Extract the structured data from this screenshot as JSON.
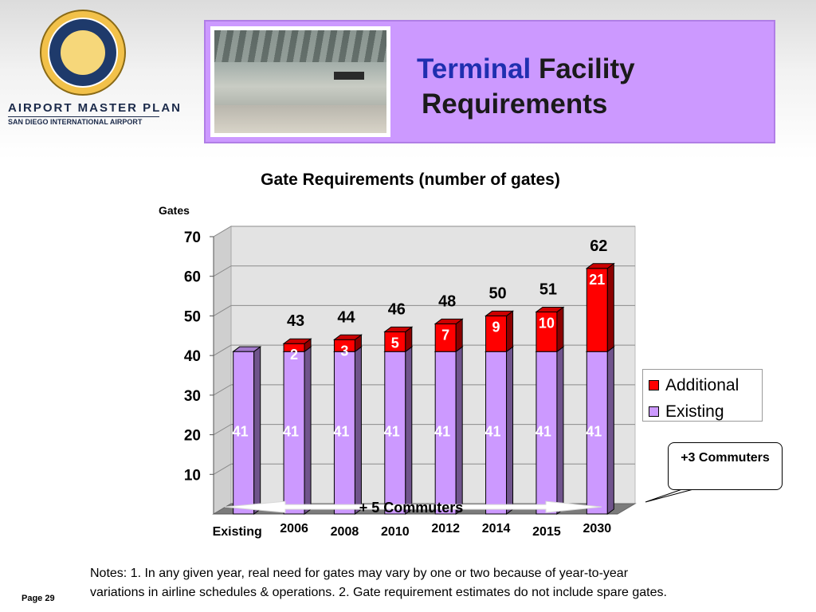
{
  "header": {
    "logo_name": "San Diego County Regional Airport Authority seal",
    "org_line1": "AIRPORT MASTER PLAN",
    "org_line2": "SAN DIEGO INTERNATIONAL AIRPORT",
    "photo": "terminal-interior-photo",
    "title_word1": "Terminal",
    "title_word2": "Facility",
    "title_line2": "Requirements",
    "colors": {
      "banner": "#cc99ff",
      "title_accent": "#1f2fb0"
    }
  },
  "chart_data": {
    "type": "bar",
    "stacked": true,
    "title": "Gate Requirements (number of gates)",
    "ylabel": "Gates",
    "xlabel": "",
    "ylim": [
      0,
      70
    ],
    "yticks": [
      10,
      20,
      30,
      40,
      50,
      60,
      70
    ],
    "categories": [
      "Existing",
      "2006",
      "2008",
      "2010",
      "2012",
      "2014",
      "2015",
      "2030"
    ],
    "series": [
      {
        "name": "Existing",
        "color": "#cc99ff",
        "values": [
          41,
          41,
          41,
          41,
          41,
          41,
          41,
          41
        ]
      },
      {
        "name": "Additional",
        "color": "#ff0000",
        "values": [
          0,
          2,
          3,
          5,
          7,
          9,
          10,
          21
        ]
      }
    ],
    "totals": [
      "",
      "43",
      "44",
      "46",
      "48",
      "50",
      "51",
      "62"
    ],
    "legend_position": "right",
    "grid": true,
    "annotations": {
      "commuters": "+ 5 Commuters",
      "callout": "+3 Commuters"
    }
  },
  "notes": {
    "line1": "Notes:   1. In any given year, real need for gates may vary by one or two because of year-to-year",
    "line2": "variations in airline schedules & operations.  2. Gate requirement estimates do not include spare gates."
  },
  "footer": {
    "page": "Page 29"
  }
}
